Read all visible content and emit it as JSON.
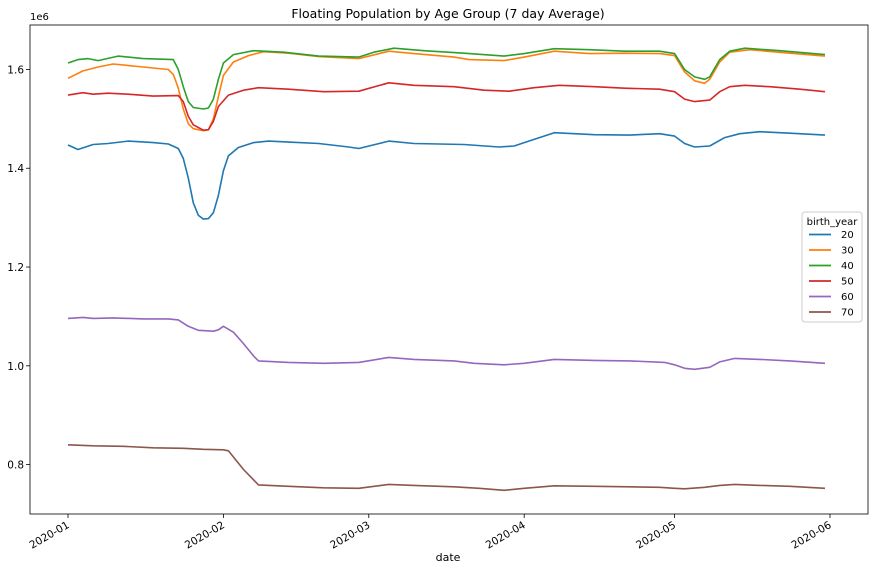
{
  "chart_data": {
    "type": "line",
    "title": "Floating Population by Age Group (7 day Average)",
    "xlabel": "date",
    "ylabel": "",
    "y_offset_label": "1e6",
    "xlim": [
      "2020-01-01",
      "2020-06-01"
    ],
    "ylim": [
      0.7,
      1.69
    ],
    "x_ticks": [
      "2020-01",
      "2020-02",
      "2020-03",
      "2020-04",
      "2020-05",
      "2020-06"
    ],
    "y_ticks": [
      "0.8",
      "1.0",
      "1.2",
      "1.4",
      "1.6"
    ],
    "y_tick_values": [
      0.8,
      1.0,
      1.2,
      1.4,
      1.6
    ],
    "legend": {
      "title": "birth_year",
      "placement": "center-right"
    },
    "grid": false,
    "series": [
      {
        "name": "20",
        "color": "#1f77b4",
        "points": [
          [
            "2020-01-01",
            1.447
          ],
          [
            "2020-01-03",
            1.438
          ],
          [
            "2020-01-06",
            1.448
          ],
          [
            "2020-01-09",
            1.45
          ],
          [
            "2020-01-13",
            1.455
          ],
          [
            "2020-01-18",
            1.452
          ],
          [
            "2020-01-21",
            1.449
          ],
          [
            "2020-01-23",
            1.44
          ],
          [
            "2020-01-24",
            1.42
          ],
          [
            "2020-01-25",
            1.38
          ],
          [
            "2020-01-26",
            1.33
          ],
          [
            "2020-01-27",
            1.305
          ],
          [
            "2020-01-28",
            1.297
          ],
          [
            "2020-01-29",
            1.298
          ],
          [
            "2020-01-30",
            1.31
          ],
          [
            "2020-01-31",
            1.345
          ],
          [
            "2020-02-01",
            1.395
          ],
          [
            "2020-02-02",
            1.425
          ],
          [
            "2020-02-04",
            1.442
          ],
          [
            "2020-02-07",
            1.452
          ],
          [
            "2020-02-10",
            1.455
          ],
          [
            "2020-02-14",
            1.453
          ],
          [
            "2020-02-20",
            1.45
          ],
          [
            "2020-02-26",
            1.443
          ],
          [
            "2020-02-28",
            1.44
          ],
          [
            "2020-03-05",
            1.455
          ],
          [
            "2020-03-10",
            1.45
          ],
          [
            "2020-03-20",
            1.448
          ],
          [
            "2020-03-27",
            1.443
          ],
          [
            "2020-03-30",
            1.445
          ],
          [
            "2020-04-01",
            1.452
          ],
          [
            "2020-04-07",
            1.472
          ],
          [
            "2020-04-15",
            1.468
          ],
          [
            "2020-04-22",
            1.467
          ],
          [
            "2020-04-28",
            1.47
          ],
          [
            "2020-05-01",
            1.465
          ],
          [
            "2020-05-03",
            1.45
          ],
          [
            "2020-05-05",
            1.443
          ],
          [
            "2020-05-08",
            1.445
          ],
          [
            "2020-05-11",
            1.462
          ],
          [
            "2020-05-14",
            1.47
          ],
          [
            "2020-05-18",
            1.474
          ],
          [
            "2020-05-24",
            1.471
          ],
          [
            "2020-05-31",
            1.467
          ]
        ]
      },
      {
        "name": "30",
        "color": "#ff7f0e",
        "points": [
          [
            "2020-01-01",
            1.582
          ],
          [
            "2020-01-04",
            1.597
          ],
          [
            "2020-01-07",
            1.605
          ],
          [
            "2020-01-10",
            1.611
          ],
          [
            "2020-01-15",
            1.606
          ],
          [
            "2020-01-21",
            1.6
          ],
          [
            "2020-01-22",
            1.59
          ],
          [
            "2020-01-23",
            1.562
          ],
          [
            "2020-01-24",
            1.52
          ],
          [
            "2020-01-25",
            1.49
          ],
          [
            "2020-01-26",
            1.48
          ],
          [
            "2020-01-28",
            1.476
          ],
          [
            "2020-01-29",
            1.478
          ],
          [
            "2020-01-30",
            1.5
          ],
          [
            "2020-01-31",
            1.545
          ],
          [
            "2020-02-01",
            1.588
          ],
          [
            "2020-02-03",
            1.615
          ],
          [
            "2020-02-06",
            1.628
          ],
          [
            "2020-02-09",
            1.636
          ],
          [
            "2020-02-14",
            1.633
          ],
          [
            "2020-02-20",
            1.626
          ],
          [
            "2020-02-28",
            1.622
          ],
          [
            "2020-03-05",
            1.637
          ],
          [
            "2020-03-10",
            1.632
          ],
          [
            "2020-03-18",
            1.625
          ],
          [
            "2020-03-21",
            1.62
          ],
          [
            "2020-03-28",
            1.618
          ],
          [
            "2020-04-01",
            1.625
          ],
          [
            "2020-04-07",
            1.637
          ],
          [
            "2020-04-14",
            1.632
          ],
          [
            "2020-04-21",
            1.633
          ],
          [
            "2020-04-28",
            1.632
          ],
          [
            "2020-05-01",
            1.628
          ],
          [
            "2020-05-03",
            1.595
          ],
          [
            "2020-05-05",
            1.577
          ],
          [
            "2020-05-07",
            1.572
          ],
          [
            "2020-05-08",
            1.58
          ],
          [
            "2020-05-10",
            1.615
          ],
          [
            "2020-05-12",
            1.635
          ],
          [
            "2020-05-16",
            1.64
          ],
          [
            "2020-05-24",
            1.633
          ],
          [
            "2020-05-31",
            1.627
          ]
        ]
      },
      {
        "name": "40",
        "color": "#2ca02c",
        "points": [
          [
            "2020-01-01",
            1.613
          ],
          [
            "2020-01-03",
            1.62
          ],
          [
            "2020-01-05",
            1.622
          ],
          [
            "2020-01-07",
            1.618
          ],
          [
            "2020-01-11",
            1.627
          ],
          [
            "2020-01-16",
            1.622
          ],
          [
            "2020-01-22",
            1.62
          ],
          [
            "2020-01-23",
            1.6
          ],
          [
            "2020-01-24",
            1.565
          ],
          [
            "2020-01-25",
            1.535
          ],
          [
            "2020-01-26",
            1.523
          ],
          [
            "2020-01-28",
            1.52
          ],
          [
            "2020-01-29",
            1.522
          ],
          [
            "2020-01-30",
            1.54
          ],
          [
            "2020-01-31",
            1.58
          ],
          [
            "2020-02-01",
            1.613
          ],
          [
            "2020-02-03",
            1.63
          ],
          [
            "2020-02-07",
            1.638
          ],
          [
            "2020-02-13",
            1.635
          ],
          [
            "2020-02-20",
            1.627
          ],
          [
            "2020-02-28",
            1.625
          ],
          [
            "2020-03-02",
            1.635
          ],
          [
            "2020-03-06",
            1.643
          ],
          [
            "2020-03-12",
            1.638
          ],
          [
            "2020-03-20",
            1.633
          ],
          [
            "2020-03-28",
            1.627
          ],
          [
            "2020-04-01",
            1.632
          ],
          [
            "2020-04-07",
            1.642
          ],
          [
            "2020-04-14",
            1.64
          ],
          [
            "2020-04-21",
            1.637
          ],
          [
            "2020-04-28",
            1.637
          ],
          [
            "2020-05-01",
            1.632
          ],
          [
            "2020-05-03",
            1.6
          ],
          [
            "2020-05-05",
            1.585
          ],
          [
            "2020-05-07",
            1.58
          ],
          [
            "2020-05-08",
            1.585
          ],
          [
            "2020-05-10",
            1.62
          ],
          [
            "2020-05-12",
            1.637
          ],
          [
            "2020-05-15",
            1.643
          ],
          [
            "2020-05-22",
            1.638
          ],
          [
            "2020-05-31",
            1.63
          ]
        ]
      },
      {
        "name": "50",
        "color": "#d62728",
        "points": [
          [
            "2020-01-01",
            1.548
          ],
          [
            "2020-01-04",
            1.553
          ],
          [
            "2020-01-06",
            1.55
          ],
          [
            "2020-01-09",
            1.552
          ],
          [
            "2020-01-13",
            1.55
          ],
          [
            "2020-01-18",
            1.546
          ],
          [
            "2020-01-23",
            1.547
          ],
          [
            "2020-01-24",
            1.535
          ],
          [
            "2020-01-25",
            1.505
          ],
          [
            "2020-01-26",
            1.488
          ],
          [
            "2020-01-28",
            1.477
          ],
          [
            "2020-01-29",
            1.478
          ],
          [
            "2020-01-30",
            1.495
          ],
          [
            "2020-01-31",
            1.525
          ],
          [
            "2020-02-02",
            1.548
          ],
          [
            "2020-02-05",
            1.558
          ],
          [
            "2020-02-08",
            1.563
          ],
          [
            "2020-02-14",
            1.56
          ],
          [
            "2020-02-21",
            1.555
          ],
          [
            "2020-02-28",
            1.556
          ],
          [
            "2020-03-05",
            1.573
          ],
          [
            "2020-03-10",
            1.568
          ],
          [
            "2020-03-18",
            1.565
          ],
          [
            "2020-03-24",
            1.558
          ],
          [
            "2020-03-29",
            1.556
          ],
          [
            "2020-04-03",
            1.563
          ],
          [
            "2020-04-08",
            1.568
          ],
          [
            "2020-04-15",
            1.565
          ],
          [
            "2020-04-21",
            1.562
          ],
          [
            "2020-04-28",
            1.56
          ],
          [
            "2020-05-01",
            1.555
          ],
          [
            "2020-05-03",
            1.54
          ],
          [
            "2020-05-05",
            1.535
          ],
          [
            "2020-05-08",
            1.538
          ],
          [
            "2020-05-10",
            1.555
          ],
          [
            "2020-05-12",
            1.565
          ],
          [
            "2020-05-15",
            1.568
          ],
          [
            "2020-05-20",
            1.565
          ],
          [
            "2020-05-26",
            1.56
          ],
          [
            "2020-05-31",
            1.555
          ]
        ]
      },
      {
        "name": "60",
        "color": "#9467bd",
        "points": [
          [
            "2020-01-01",
            1.096
          ],
          [
            "2020-01-04",
            1.098
          ],
          [
            "2020-01-06",
            1.096
          ],
          [
            "2020-01-10",
            1.097
          ],
          [
            "2020-01-16",
            1.095
          ],
          [
            "2020-01-21",
            1.095
          ],
          [
            "2020-01-23",
            1.093
          ],
          [
            "2020-01-25",
            1.08
          ],
          [
            "2020-01-27",
            1.072
          ],
          [
            "2020-01-30",
            1.07
          ],
          [
            "2020-01-31",
            1.073
          ],
          [
            "2020-02-01",
            1.08
          ],
          [
            "2020-02-03",
            1.068
          ],
          [
            "2020-02-05",
            1.045
          ],
          [
            "2020-02-07",
            1.02
          ],
          [
            "2020-02-08",
            1.01
          ],
          [
            "2020-02-14",
            1.007
          ],
          [
            "2020-02-21",
            1.005
          ],
          [
            "2020-02-28",
            1.007
          ],
          [
            "2020-03-05",
            1.017
          ],
          [
            "2020-03-10",
            1.013
          ],
          [
            "2020-03-18",
            1.01
          ],
          [
            "2020-03-22",
            1.005
          ],
          [
            "2020-03-28",
            1.002
          ],
          [
            "2020-04-01",
            1.005
          ],
          [
            "2020-04-07",
            1.013
          ],
          [
            "2020-04-15",
            1.011
          ],
          [
            "2020-04-22",
            1.01
          ],
          [
            "2020-04-29",
            1.007
          ],
          [
            "2020-05-01",
            1.002
          ],
          [
            "2020-05-03",
            0.995
          ],
          [
            "2020-05-05",
            0.993
          ],
          [
            "2020-05-08",
            0.997
          ],
          [
            "2020-05-10",
            1.008
          ],
          [
            "2020-05-13",
            1.015
          ],
          [
            "2020-05-18",
            1.013
          ],
          [
            "2020-05-24",
            1.01
          ],
          [
            "2020-05-31",
            1.005
          ]
        ]
      },
      {
        "name": "70",
        "color": "#8c564b",
        "points": [
          [
            "2020-01-01",
            0.84
          ],
          [
            "2020-01-06",
            0.838
          ],
          [
            "2020-01-12",
            0.837
          ],
          [
            "2020-01-18",
            0.834
          ],
          [
            "2020-01-24",
            0.833
          ],
          [
            "2020-01-28",
            0.831
          ],
          [
            "2020-02-01",
            0.83
          ],
          [
            "2020-02-02",
            0.828
          ],
          [
            "2020-02-05",
            0.79
          ],
          [
            "2020-02-08",
            0.759
          ],
          [
            "2020-02-14",
            0.756
          ],
          [
            "2020-02-21",
            0.753
          ],
          [
            "2020-02-28",
            0.752
          ],
          [
            "2020-03-05",
            0.76
          ],
          [
            "2020-03-10",
            0.758
          ],
          [
            "2020-03-18",
            0.755
          ],
          [
            "2020-03-23",
            0.752
          ],
          [
            "2020-03-28",
            0.748
          ],
          [
            "2020-04-01",
            0.752
          ],
          [
            "2020-04-07",
            0.757
          ],
          [
            "2020-04-15",
            0.756
          ],
          [
            "2020-04-22",
            0.755
          ],
          [
            "2020-04-28",
            0.754
          ],
          [
            "2020-05-01",
            0.752
          ],
          [
            "2020-05-03",
            0.751
          ],
          [
            "2020-05-07",
            0.754
          ],
          [
            "2020-05-10",
            0.758
          ],
          [
            "2020-05-13",
            0.76
          ],
          [
            "2020-05-18",
            0.758
          ],
          [
            "2020-05-24",
            0.756
          ],
          [
            "2020-05-31",
            0.752
          ]
        ]
      }
    ]
  }
}
